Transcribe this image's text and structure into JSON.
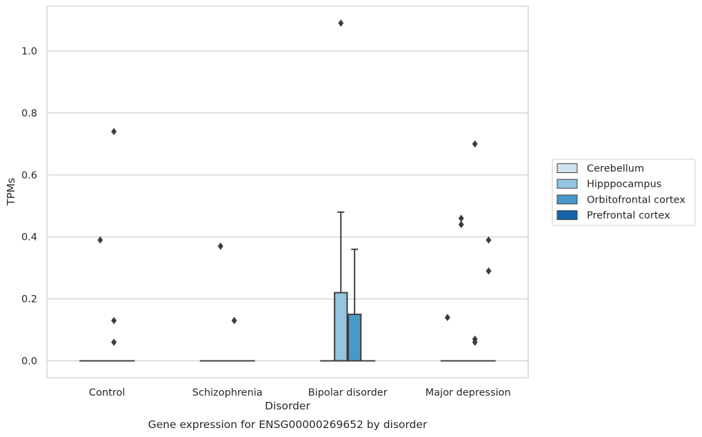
{
  "chart_data": {
    "type": "box",
    "title": "Gene expression for ENSG00000269652 by disorder",
    "xlabel": "Disorder",
    "ylabel": "TPMs",
    "ylim": [
      -0.053,
      1.145
    ],
    "yticks": [
      0.0,
      0.2,
      0.4,
      0.6,
      0.8,
      1.0
    ],
    "ytick_labels": [
      "0.0",
      "0.2",
      "0.4",
      "0.6",
      "0.8",
      "1.0"
    ],
    "grid": "horizontal",
    "legend_position": "right",
    "categories": [
      "Control",
      "Schizophrenia",
      "Bipolar disorder",
      "Major depression"
    ],
    "series": [
      {
        "name": "Cerebellum",
        "color": "#d0e1f2",
        "boxes": [
          {
            "q1": 0,
            "median": 0,
            "q3": 0,
            "whisker_low": 0,
            "whisker_high": 0,
            "outliers": []
          },
          {
            "q1": 0,
            "median": 0,
            "q3": 0,
            "whisker_low": 0,
            "whisker_high": 0,
            "outliers": []
          },
          {
            "q1": 0,
            "median": 0,
            "q3": 0,
            "whisker_low": 0,
            "whisker_high": 0,
            "outliers": []
          },
          {
            "q1": 0,
            "median": 0,
            "q3": 0,
            "whisker_low": 0,
            "whisker_high": 0,
            "outliers": [
              0.14
            ]
          }
        ]
      },
      {
        "name": "Hipppocampus",
        "color": "#94c4df",
        "boxes": [
          {
            "q1": 0,
            "median": 0,
            "q3": 0,
            "whisker_low": 0,
            "whisker_high": 0,
            "outliers": [
              0.39
            ]
          },
          {
            "q1": 0,
            "median": 0,
            "q3": 0,
            "whisker_low": 0,
            "whisker_high": 0,
            "outliers": [
              0.37
            ]
          },
          {
            "q1": 0,
            "median": 0,
            "q3": 0.22,
            "whisker_low": 0,
            "whisker_high": 0.48,
            "outliers": [
              1.09
            ]
          },
          {
            "q1": 0,
            "median": 0,
            "q3": 0,
            "whisker_low": 0,
            "whisker_high": 0,
            "outliers": [
              0.46,
              0.44
            ]
          }
        ]
      },
      {
        "name": "Orbitofrontal cortex",
        "color": "#4a98c9",
        "boxes": [
          {
            "q1": 0,
            "median": 0,
            "q3": 0,
            "whisker_low": 0,
            "whisker_high": 0,
            "outliers": [
              0.74,
              0.13,
              0.06
            ]
          },
          {
            "q1": 0,
            "median": 0,
            "q3": 0,
            "whisker_low": 0,
            "whisker_high": 0,
            "outliers": [
              0.13
            ]
          },
          {
            "q1": 0,
            "median": 0,
            "q3": 0.15,
            "whisker_low": 0,
            "whisker_high": 0.36,
            "outliers": []
          },
          {
            "q1": 0,
            "median": 0,
            "q3": 0,
            "whisker_low": 0,
            "whisker_high": 0,
            "outliers": [
              0.7,
              0.07,
              0.06
            ]
          }
        ]
      },
      {
        "name": "Prefrontal cortex",
        "color": "#1764ab",
        "boxes": [
          {
            "q1": 0,
            "median": 0,
            "q3": 0,
            "whisker_low": 0,
            "whisker_high": 0,
            "outliers": []
          },
          {
            "q1": 0,
            "median": 0,
            "q3": 0,
            "whisker_low": 0,
            "whisker_high": 0,
            "outliers": []
          },
          {
            "q1": 0,
            "median": 0,
            "q3": 0,
            "whisker_low": 0,
            "whisker_high": 0,
            "outliers": []
          },
          {
            "q1": 0,
            "median": 0,
            "q3": 0,
            "whisker_low": 0,
            "whisker_high": 0,
            "outliers": [
              0.39,
              0.29
            ]
          }
        ]
      }
    ]
  }
}
